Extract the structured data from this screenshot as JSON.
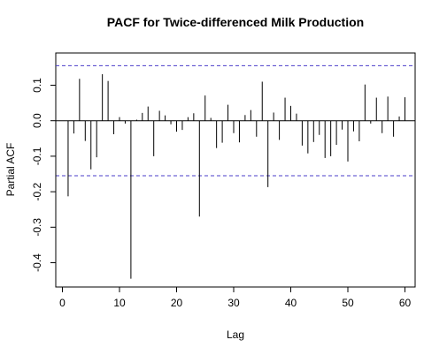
{
  "chart_data": {
    "type": "bar",
    "title": "PACF for Twice-differenced Milk Production",
    "xlabel": "Lag",
    "ylabel": "Partial ACF",
    "xlim": [
      0,
      60
    ],
    "ylim": [
      -0.45,
      0.15
    ],
    "x_ticks": [
      0,
      10,
      20,
      30,
      40,
      50,
      60
    ],
    "y_ticks": [
      -0.4,
      -0.3,
      -0.2,
      -0.1,
      0.0,
      0.1
    ],
    "y_tick_labels": [
      "-0.4",
      "-0.3",
      "-0.2",
      "-0.1",
      "0.0",
      "0.1"
    ],
    "confidence_bounds": [
      0.155,
      -0.155
    ],
    "lags": [
      1,
      2,
      3,
      4,
      5,
      6,
      7,
      8,
      9,
      10,
      11,
      12,
      13,
      14,
      15,
      16,
      17,
      18,
      19,
      20,
      21,
      22,
      23,
      24,
      25,
      26,
      27,
      28,
      29,
      30,
      31,
      32,
      33,
      34,
      35,
      36,
      37,
      38,
      39,
      40,
      41,
      42,
      43,
      44,
      45,
      46,
      47,
      48,
      49,
      50,
      51,
      52,
      53,
      54,
      55,
      56,
      57,
      58,
      59,
      60
    ],
    "values": [
      -0.213,
      -0.036,
      0.118,
      -0.057,
      -0.137,
      -0.103,
      0.131,
      0.112,
      -0.038,
      0.01,
      -0.008,
      -0.445,
      0.003,
      0.022,
      0.04,
      -0.1,
      0.028,
      0.015,
      -0.01,
      -0.031,
      -0.026,
      0.01,
      0.021,
      -0.27,
      0.071,
      0.008,
      -0.077,
      -0.062,
      0.045,
      -0.035,
      -0.061,
      0.016,
      0.03,
      -0.045,
      0.11,
      -0.187,
      0.023,
      -0.054,
      0.065,
      0.042,
      0.02,
      -0.07,
      -0.092,
      -0.06,
      -0.04,
      -0.105,
      -0.1,
      -0.068,
      -0.025,
      -0.115,
      -0.03,
      -0.058,
      0.102,
      -0.008,
      0.065,
      -0.035,
      0.068,
      -0.045,
      0.012,
      0.066
    ],
    "grid": false,
    "bar_color": "#000000",
    "bound_color": "#4a3cc9"
  }
}
